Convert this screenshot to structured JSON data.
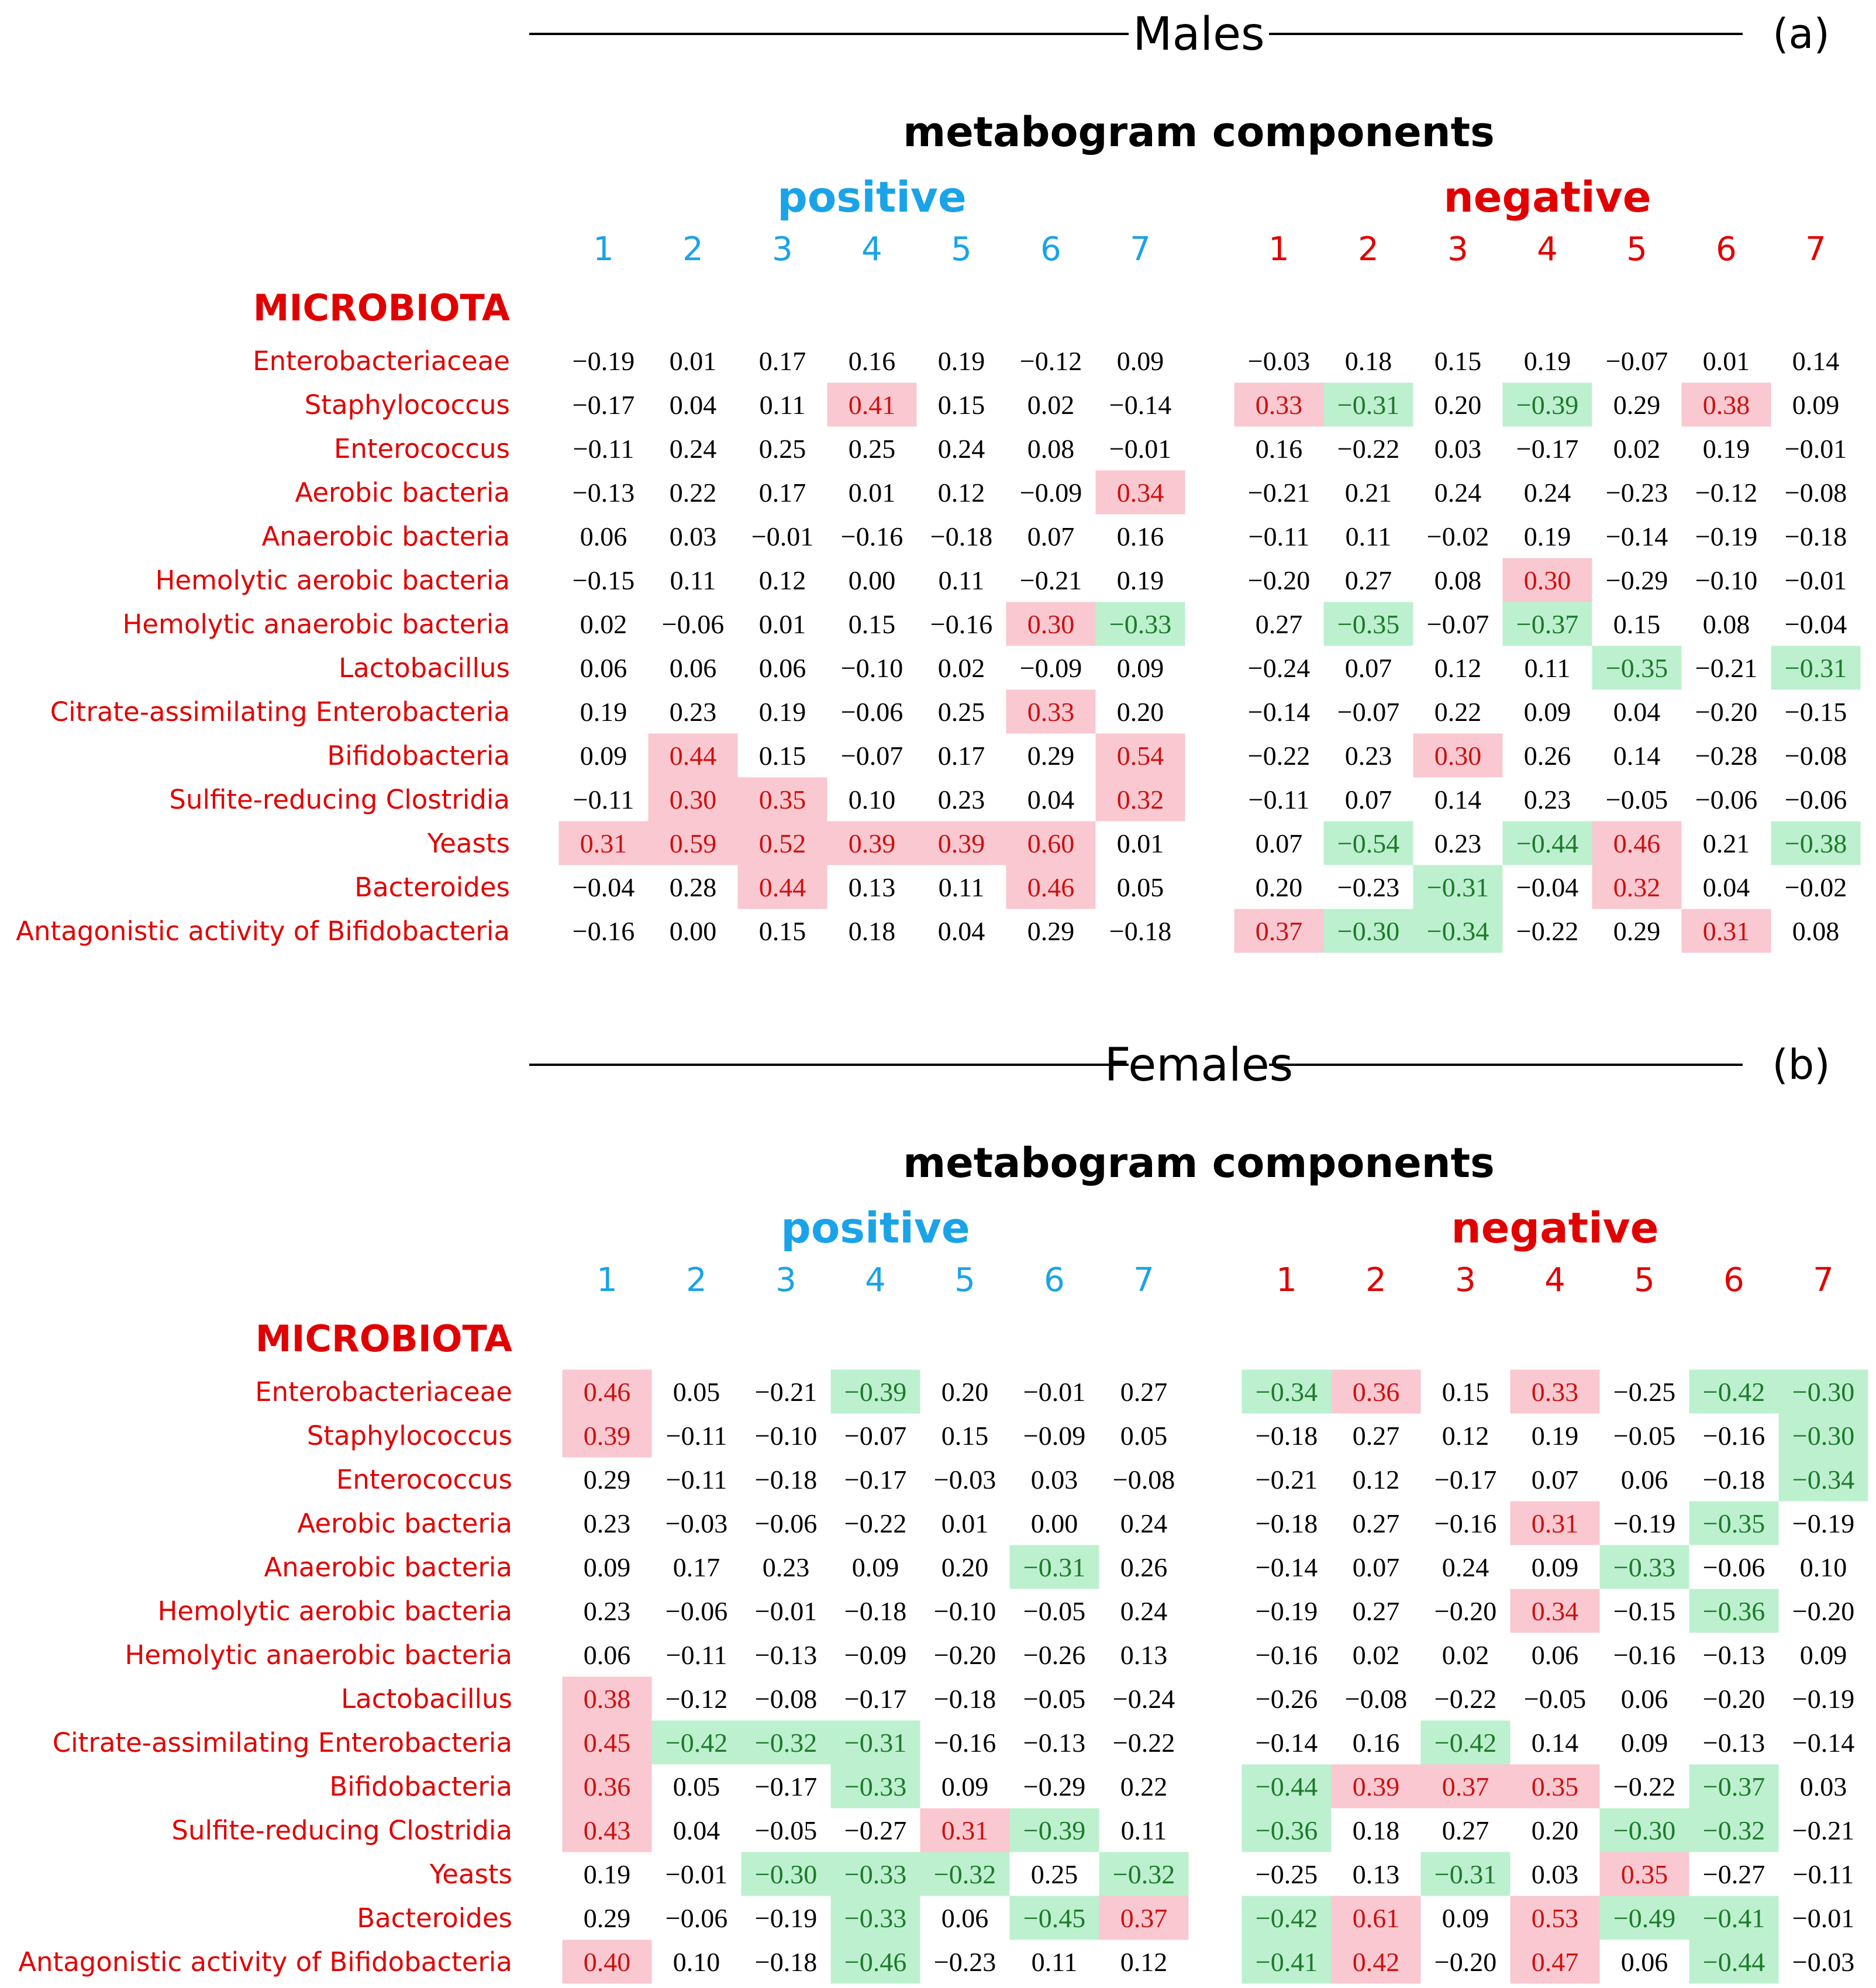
{
  "colors": {
    "positive": "#1aa3e8",
    "negative": "#e10000",
    "label": "#e10000",
    "pos_fill": "#f9c8d0",
    "pos_text": "#cc1010",
    "neg_fill": "#bdf0cf",
    "neg_text": "#1c7a2a",
    "cell_text": "#000000"
  },
  "chart_data": [
    {
      "type": "heatmap",
      "title": "Males",
      "panel_label": "(a)",
      "subtitle": "metabogram components",
      "row_header": "MICROBIOTA",
      "groups": [
        {
          "name": "positive",
          "columns": [
            "1",
            "2",
            "3",
            "4",
            "5",
            "6",
            "7"
          ]
        },
        {
          "name": "negative",
          "columns": [
            "1",
            "2",
            "3",
            "4",
            "5",
            "6",
            "7"
          ]
        }
      ],
      "rows": [
        "Enterobacteriaceae",
        "Staphylococcus",
        "Enterococcus",
        "Aerobic bacteria",
        "Anaerobic bacteria",
        "Hemolytic aerobic bacteria",
        "Hemolytic anaerobic bacteria",
        "Lactobacillus",
        "Citrate-assimilating Enterobacteria",
        "Bifidobacteria",
        "Sulfite-reducing Clostridia",
        "Yeasts",
        "Bacteroides",
        "Antagonistic activity of Bifidobacteria"
      ],
      "highlight_threshold": 0.3,
      "values": [
        [
          -0.19,
          0.01,
          0.17,
          0.16,
          0.19,
          -0.12,
          0.09,
          -0.03,
          0.18,
          0.15,
          0.19,
          -0.07,
          0.01,
          0.14
        ],
        [
          -0.17,
          0.04,
          0.11,
          0.41,
          0.15,
          0.02,
          -0.14,
          0.33,
          -0.31,
          0.2,
          -0.39,
          0.29,
          0.38,
          0.09
        ],
        [
          -0.11,
          0.24,
          0.25,
          0.25,
          0.24,
          0.08,
          -0.01,
          0.16,
          -0.22,
          0.03,
          -0.17,
          0.02,
          0.19,
          -0.01
        ],
        [
          -0.13,
          0.22,
          0.17,
          0.01,
          0.12,
          -0.09,
          0.34,
          -0.21,
          0.21,
          0.24,
          0.24,
          -0.23,
          -0.12,
          -0.08
        ],
        [
          0.06,
          0.03,
          -0.01,
          -0.16,
          -0.18,
          0.07,
          0.16,
          -0.11,
          0.11,
          -0.02,
          0.19,
          -0.14,
          -0.19,
          -0.18
        ],
        [
          -0.15,
          0.11,
          0.12,
          0.0,
          0.11,
          -0.21,
          0.19,
          -0.2,
          0.27,
          0.08,
          0.3,
          -0.29,
          -0.1,
          -0.01
        ],
        [
          0.02,
          -0.06,
          0.01,
          0.15,
          -0.16,
          0.3,
          -0.33,
          0.27,
          -0.35,
          -0.07,
          -0.37,
          0.15,
          0.08,
          -0.04
        ],
        [
          0.06,
          0.06,
          0.06,
          -0.1,
          0.02,
          -0.09,
          0.09,
          -0.24,
          0.07,
          0.12,
          0.11,
          -0.35,
          -0.21,
          -0.31
        ],
        [
          0.19,
          0.23,
          0.19,
          -0.06,
          0.25,
          0.33,
          0.2,
          -0.14,
          -0.07,
          0.22,
          0.09,
          0.04,
          -0.2,
          -0.15
        ],
        [
          0.09,
          0.44,
          0.15,
          -0.07,
          0.17,
          0.29,
          0.54,
          -0.22,
          0.23,
          0.3,
          0.26,
          0.14,
          -0.28,
          -0.08
        ],
        [
          -0.11,
          0.3,
          0.35,
          0.1,
          0.23,
          0.04,
          0.32,
          -0.11,
          0.07,
          0.14,
          0.23,
          -0.05,
          -0.06,
          -0.06
        ],
        [
          0.31,
          0.59,
          0.52,
          0.39,
          0.39,
          0.6,
          0.01,
          0.07,
          -0.54,
          0.23,
          -0.44,
          0.46,
          0.21,
          -0.38
        ],
        [
          -0.04,
          0.28,
          0.44,
          0.13,
          0.11,
          0.46,
          0.05,
          0.2,
          -0.23,
          -0.31,
          -0.04,
          0.32,
          0.04,
          -0.02
        ],
        [
          -0.16,
          0.0,
          0.15,
          0.18,
          0.04,
          0.29,
          -0.18,
          0.37,
          -0.3,
          -0.34,
          -0.22,
          0.29,
          0.31,
          0.08
        ]
      ]
    },
    {
      "type": "heatmap",
      "title": "Females",
      "panel_label": "(b)",
      "subtitle": "metabogram components",
      "row_header": "MICROBIOTA",
      "groups": [
        {
          "name": "positive",
          "columns": [
            "1",
            "2",
            "3",
            "4",
            "5",
            "6",
            "7"
          ]
        },
        {
          "name": "negative",
          "columns": [
            "1",
            "2",
            "3",
            "4",
            "5",
            "6",
            "7"
          ]
        }
      ],
      "rows": [
        "Enterobacteriaceae",
        "Staphylococcus",
        "Enterococcus",
        "Aerobic bacteria",
        "Anaerobic bacteria",
        "Hemolytic aerobic bacteria",
        "Hemolytic anaerobic bacteria",
        "Lactobacillus",
        "Citrate-assimilating Enterobacteria",
        "Bifidobacteria",
        "Sulfite-reducing Clostridia",
        "Yeasts",
        "Bacteroides",
        "Antagonistic activity of Bifidobacteria"
      ],
      "highlight_threshold": 0.3,
      "values": [
        [
          0.46,
          0.05,
          -0.21,
          -0.39,
          0.2,
          -0.01,
          0.27,
          -0.34,
          0.36,
          0.15,
          0.33,
          -0.25,
          -0.42,
          -0.3
        ],
        [
          0.39,
          -0.11,
          -0.1,
          -0.07,
          0.15,
          -0.09,
          0.05,
          -0.18,
          0.27,
          0.12,
          0.19,
          -0.05,
          -0.16,
          -0.3
        ],
        [
          0.29,
          -0.11,
          -0.18,
          -0.17,
          -0.03,
          0.03,
          -0.08,
          -0.21,
          0.12,
          -0.17,
          0.07,
          0.06,
          -0.18,
          -0.34
        ],
        [
          0.23,
          -0.03,
          -0.06,
          -0.22,
          0.01,
          0.0,
          0.24,
          -0.18,
          0.27,
          -0.16,
          0.31,
          -0.19,
          -0.35,
          -0.19
        ],
        [
          0.09,
          0.17,
          0.23,
          0.09,
          0.2,
          -0.31,
          0.26,
          -0.14,
          0.07,
          0.24,
          0.09,
          -0.33,
          -0.06,
          0.1
        ],
        [
          0.23,
          -0.06,
          -0.01,
          -0.18,
          -0.1,
          -0.05,
          0.24,
          -0.19,
          0.27,
          -0.2,
          0.34,
          -0.15,
          -0.36,
          -0.2
        ],
        [
          0.06,
          -0.11,
          -0.13,
          -0.09,
          -0.2,
          -0.26,
          0.13,
          -0.16,
          0.02,
          0.02,
          0.06,
          -0.16,
          -0.13,
          0.09
        ],
        [
          0.38,
          -0.12,
          -0.08,
          -0.17,
          -0.18,
          -0.05,
          -0.24,
          -0.26,
          -0.08,
          -0.22,
          -0.05,
          0.06,
          -0.2,
          -0.19
        ],
        [
          0.45,
          -0.42,
          -0.32,
          -0.31,
          -0.16,
          -0.13,
          -0.22,
          -0.14,
          0.16,
          -0.42,
          0.14,
          0.09,
          -0.13,
          -0.14
        ],
        [
          0.36,
          0.05,
          -0.17,
          -0.33,
          0.09,
          -0.29,
          0.22,
          -0.44,
          0.39,
          0.37,
          0.35,
          -0.22,
          -0.37,
          0.03
        ],
        [
          0.43,
          0.04,
          -0.05,
          -0.27,
          0.31,
          -0.39,
          0.11,
          -0.36,
          0.18,
          0.27,
          0.2,
          -0.3,
          -0.32,
          -0.21
        ],
        [
          0.19,
          -0.01,
          -0.3,
          -0.33,
          -0.32,
          0.25,
          -0.32,
          -0.25,
          0.13,
          -0.31,
          0.03,
          0.35,
          -0.27,
          -0.11
        ],
        [
          0.29,
          -0.06,
          -0.19,
          -0.33,
          0.06,
          -0.45,
          0.37,
          -0.42,
          0.61,
          0.09,
          0.53,
          -0.49,
          -0.41,
          -0.01
        ],
        [
          0.4,
          0.1,
          -0.18,
          -0.46,
          -0.23,
          0.11,
          0.12,
          -0.41,
          0.42,
          -0.2,
          0.47,
          0.06,
          -0.44,
          -0.03
        ]
      ]
    }
  ]
}
